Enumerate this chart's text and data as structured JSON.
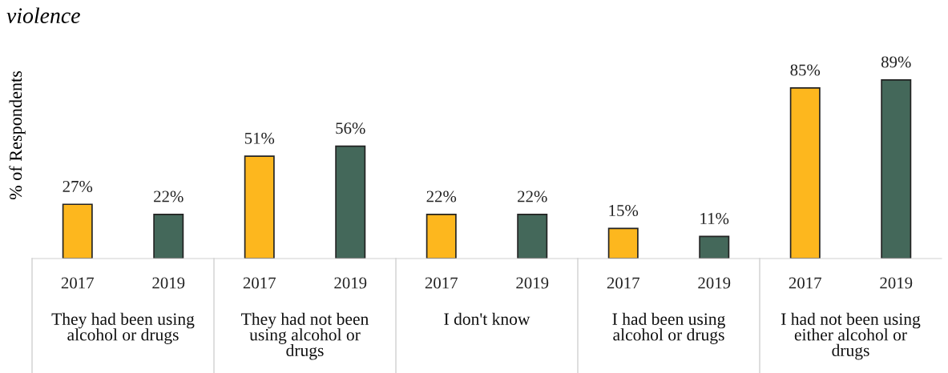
{
  "chart_data": {
    "type": "bar",
    "title": "violence",
    "ylabel": "% of Respondents",
    "categories": [
      "2017",
      "2019",
      "2017",
      "2019",
      "2017",
      "2019",
      "2017",
      "2019",
      "2017",
      "2019"
    ],
    "values": [
      27,
      22,
      51,
      56,
      22,
      22,
      15,
      11,
      85,
      89
    ],
    "colors": [
      "#fdb71e",
      "#44685a",
      "#fdb71e",
      "#44685a",
      "#fdb71e",
      "#44685a",
      "#fdb71e",
      "#44685a",
      "#fdb71e",
      "#44685a"
    ],
    "value_labels": [
      "27%",
      "22%",
      "51%",
      "56%",
      "22%",
      "22%",
      "15%",
      "11%",
      "85%",
      "89%"
    ],
    "annotations": [
      "They had been using\nalcohol or drugs",
      "They had not been\nusing alcohol or\ndrugs",
      "I don't know",
      "I had been using\nalcohol or drugs",
      "I had not been using\neither alcohol or\ndrugs"
    ]
  }
}
